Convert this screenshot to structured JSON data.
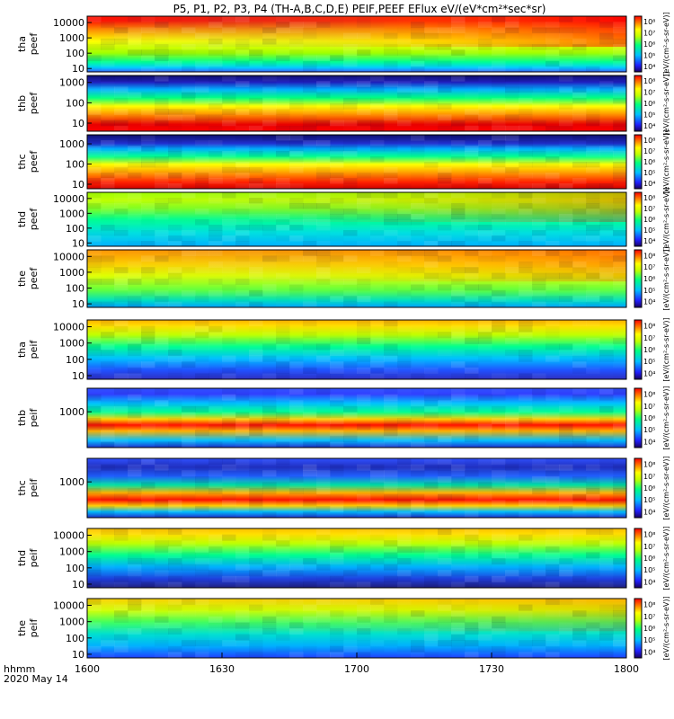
{
  "chart_data": {
    "type": "heatmap",
    "title": "P5, P1, P2, P3, P4 (TH-A,B,C,D,E) PEIF,PEEF EFlux eV/(eV*cm²*sec*sr)",
    "x_axis": {
      "ticks": [
        "1600",
        "1630",
        "1700",
        "1730",
        "1800"
      ],
      "corner_label_1": "hhmm",
      "corner_label_2": "2020 May 14"
    },
    "colorbar": {
      "scale": "log",
      "label": "[eV/(cm²-s-sr-eV)]",
      "ticks": [
        "10⁴",
        "10⁵",
        "10⁶",
        "10⁷",
        "10⁸"
      ]
    },
    "panels": [
      {
        "probe": "tha",
        "product": "peef",
        "yticks": [
          "10",
          "100",
          "1000",
          "10000"
        ],
        "ymin": 6,
        "ymax": 26000,
        "bands": [
          [
            0.0,
            "#3f60ff"
          ],
          [
            0.08,
            "#00d0ff"
          ],
          [
            0.18,
            "#00ff90"
          ],
          [
            0.34,
            "#a0ff00"
          ],
          [
            0.55,
            "#ffff00"
          ],
          [
            0.75,
            "#ff9000"
          ],
          [
            0.92,
            "#ff1000"
          ]
        ],
        "ramp": 0.55
      },
      {
        "probe": "thb",
        "product": "peef",
        "yticks": [
          "10",
          "100",
          "1000"
        ],
        "ymin": 4,
        "ymax": 2200,
        "bands": [
          [
            0.0,
            "#ff0000"
          ],
          [
            0.12,
            "#e80000"
          ],
          [
            0.3,
            "#ff9000"
          ],
          [
            0.45,
            "#ffff00"
          ],
          [
            0.6,
            "#00ff80"
          ],
          [
            0.75,
            "#00b0ff"
          ],
          [
            0.88,
            "#2020c0"
          ],
          [
            1.0,
            "#101070"
          ]
        ],
        "ramp": 0.0
      },
      {
        "probe": "thc",
        "product": "peef",
        "yticks": [
          "10",
          "100",
          "1000"
        ],
        "ymin": 6,
        "ymax": 2800,
        "bands": [
          [
            0.0,
            "#d00000"
          ],
          [
            0.12,
            "#ff2000"
          ],
          [
            0.28,
            "#ff9000"
          ],
          [
            0.45,
            "#ffff00"
          ],
          [
            0.6,
            "#00ff90"
          ],
          [
            0.74,
            "#00b0ff"
          ],
          [
            0.84,
            "#2030d0"
          ],
          [
            1.0,
            "#101070"
          ]
        ],
        "ramp": 0.0
      },
      {
        "probe": "thd",
        "product": "peef",
        "yticks": [
          "10",
          "100",
          "1000",
          "10000"
        ],
        "ymin": 6,
        "ymax": 26000,
        "bands": [
          [
            0.0,
            "#00b0ff"
          ],
          [
            0.25,
            "#00e0e0"
          ],
          [
            0.5,
            "#00ff90"
          ],
          [
            0.7,
            "#80ff20"
          ],
          [
            0.85,
            "#c0ff00"
          ],
          [
            1.0,
            "#a0ff00"
          ]
        ],
        "ramp": 0.3
      },
      {
        "probe": "the",
        "product": "peef",
        "yticks": [
          "10",
          "100",
          "1000",
          "10000"
        ],
        "ymin": 6,
        "ymax": 26000,
        "bands": [
          [
            0.0,
            "#00a0ff"
          ],
          [
            0.12,
            "#00e0c0"
          ],
          [
            0.3,
            "#60ff40"
          ],
          [
            0.55,
            "#e0ff00"
          ],
          [
            0.75,
            "#ffd000"
          ],
          [
            1.0,
            "#ff9000"
          ]
        ],
        "ramp": 0.25
      },
      {
        "probe": "tha",
        "product": "peif",
        "yticks": [
          "10",
          "100",
          "1000",
          "10000"
        ],
        "ymin": 6,
        "ymax": 26000,
        "bands": [
          [
            0.0,
            "#3030c0"
          ],
          [
            0.15,
            "#2050ff"
          ],
          [
            0.35,
            "#00c0ff"
          ],
          [
            0.55,
            "#00ff90"
          ],
          [
            0.75,
            "#c0ff00"
          ],
          [
            0.9,
            "#ffe000"
          ],
          [
            1.0,
            "#ffb000"
          ]
        ],
        "ramp": 0.0
      },
      {
        "probe": "thb",
        "product": "peif",
        "yticks": [
          "1000"
        ],
        "ymin": 30,
        "ymax": 10000,
        "bands": [
          [
            0.0,
            "#2030d0"
          ],
          [
            0.12,
            "#00c0ff"
          ],
          [
            0.28,
            "#ffb000"
          ],
          [
            0.38,
            "#ff1000"
          ],
          [
            0.48,
            "#ffd000"
          ],
          [
            0.6,
            "#00ff90"
          ],
          [
            0.75,
            "#00c0ff"
          ],
          [
            0.9,
            "#3040ff"
          ],
          [
            1.0,
            "#3050ff"
          ]
        ],
        "ramp": 0.0
      },
      {
        "probe": "thc",
        "product": "peif",
        "yticks": [
          "1000"
        ],
        "ymin": 30,
        "ymax": 10000,
        "bands": [
          [
            0.0,
            "#2030d0"
          ],
          [
            0.1,
            "#00c0ff"
          ],
          [
            0.2,
            "#ffd000"
          ],
          [
            0.3,
            "#ff1000"
          ],
          [
            0.42,
            "#ffb000"
          ],
          [
            0.55,
            "#00e0a0"
          ],
          [
            0.7,
            "#2060ff"
          ],
          [
            0.85,
            "#2030c0"
          ],
          [
            1.0,
            "#3050ff"
          ]
        ],
        "ramp": 0.0
      },
      {
        "probe": "thd",
        "product": "peif",
        "yticks": [
          "10",
          "100",
          "1000",
          "10000"
        ],
        "ymin": 6,
        "ymax": 26000,
        "bands": [
          [
            0.0,
            "#202080"
          ],
          [
            0.15,
            "#2040e0"
          ],
          [
            0.35,
            "#00b0ff"
          ],
          [
            0.55,
            "#00ff90"
          ],
          [
            0.75,
            "#c0ff00"
          ],
          [
            0.9,
            "#ffe000"
          ],
          [
            1.0,
            "#ffc000"
          ]
        ],
        "ramp": 0.0
      },
      {
        "probe": "the",
        "product": "peif",
        "yticks": [
          "10",
          "100",
          "1000",
          "10000"
        ],
        "ymin": 6,
        "ymax": 26000,
        "bands": [
          [
            0.0,
            "#2040ff"
          ],
          [
            0.2,
            "#00b0ff"
          ],
          [
            0.4,
            "#00e0d0"
          ],
          [
            0.6,
            "#40ff60"
          ],
          [
            0.8,
            "#d0ff00"
          ],
          [
            1.0,
            "#ffd000"
          ]
        ],
        "ramp": 0.15
      }
    ]
  }
}
